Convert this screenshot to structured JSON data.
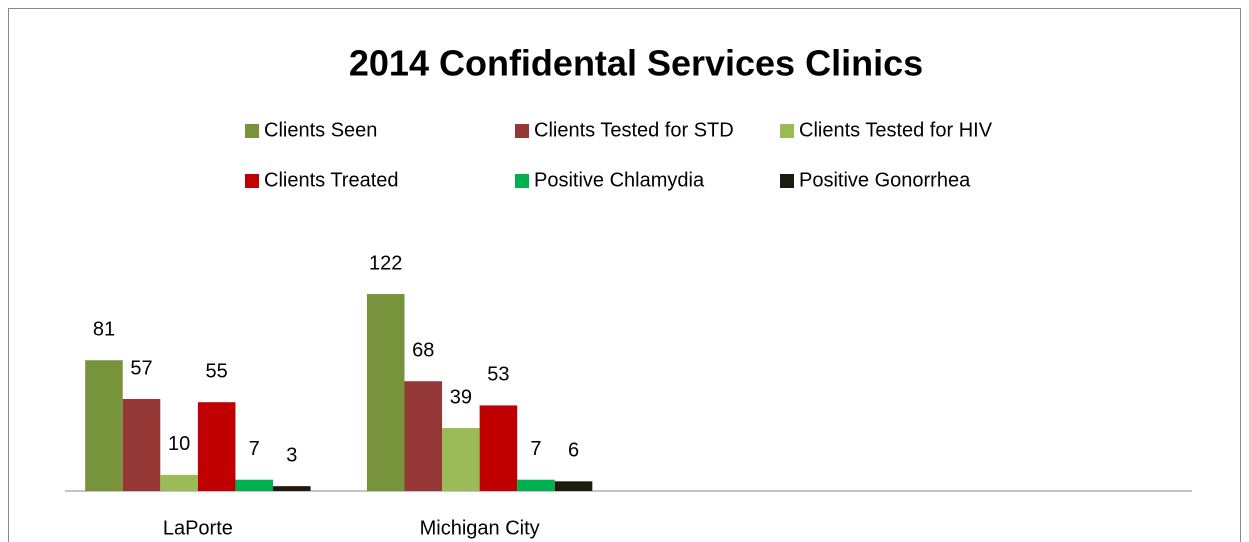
{
  "chart_data": {
    "type": "bar",
    "title": "2014 Confidental Services Clinics",
    "categories": [
      "LaPorte",
      "Michigan City",
      null,
      null
    ],
    "series": [
      {
        "name": "Clients Seen",
        "color": "#77933c",
        "values": [
          81,
          122,
          null,
          null
        ]
      },
      {
        "name": "Clients Tested for STD",
        "color": "#953735",
        "values": [
          57,
          68,
          null,
          null
        ]
      },
      {
        "name": "Clients Tested for HIV",
        "color": "#9bbb59",
        "values": [
          10,
          39,
          null,
          null
        ]
      },
      {
        "name": "Clients Treated",
        "color": "#c00000",
        "values": [
          55,
          53,
          null,
          null
        ]
      },
      {
        "name": "Positive Chlamydia",
        "color": "#00b050",
        "values": [
          7,
          7,
          null,
          null
        ]
      },
      {
        "name": "Positive Gonorrhea",
        "color": "#1d1b10",
        "values": [
          3,
          6,
          null,
          null
        ]
      }
    ],
    "ylim": [
      0,
      140
    ],
    "grid": false,
    "legend": "top"
  }
}
